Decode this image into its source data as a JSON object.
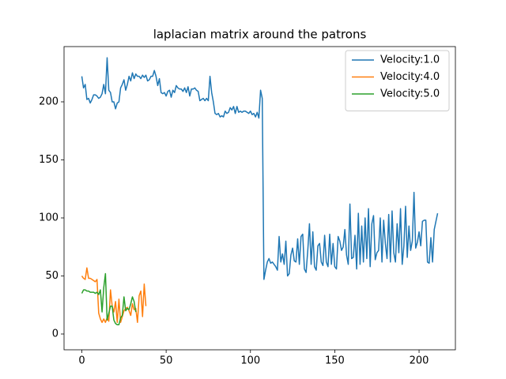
{
  "chart_data": {
    "type": "line",
    "title": "laplacian matrix around the patrons",
    "xlim": [
      -10.55,
      221.55
    ],
    "xticks": [
      0,
      50,
      100,
      150,
      200
    ],
    "ylim": [
      -13.6,
      247.6
    ],
    "yticks": [
      0,
      50,
      100,
      150,
      200
    ],
    "legend": "upper right",
    "series": [
      {
        "name": "Velocity:1.0",
        "color": "#1f77b4",
        "values": [
          222,
          212,
          215,
          202,
          203,
          199,
          202,
          206,
          206,
          205,
          203,
          204,
          207,
          215,
          207,
          238,
          210,
          208,
          200,
          200,
          194,
          199,
          200,
          212,
          215,
          219,
          210,
          215,
          222,
          218,
          225,
          220,
          224,
          222,
          222,
          220,
          223,
          221,
          223,
          218,
          219,
          222,
          222,
          227,
          222,
          214,
          220,
          208,
          207,
          208,
          205,
          209,
          210,
          204,
          210,
          208,
          214,
          212,
          211,
          211,
          209,
          212,
          208,
          213,
          205,
          211,
          211,
          212,
          210,
          209,
          201,
          202,
          203,
          201,
          203,
          201,
          222,
          208,
          200,
          190,
          189,
          190,
          187,
          188,
          187,
          192,
          190,
          191,
          195,
          193,
          196,
          190,
          196,
          191,
          192,
          191,
          192,
          192,
          191,
          190,
          192,
          189,
          190,
          187,
          191,
          186,
          210,
          203,
          47,
          55,
          62,
          65,
          61,
          62,
          60,
          58,
          55,
          84,
          62,
          69,
          60,
          80,
          50,
          52,
          68,
          74,
          63,
          62,
          82,
          60,
          84,
          86,
          56,
          53,
          72,
          95,
          60,
          88,
          58,
          55,
          76,
          78,
          62,
          59,
          85,
          62,
          58,
          86,
          60,
          78,
          58,
          56,
          84,
          80,
          72,
          75,
          90,
          68,
          60,
          112,
          65,
          66,
          85,
          56,
          104,
          60,
          93,
          62,
          100,
          65,
          108,
          58,
          95,
          102,
          64,
          70,
          72,
          100,
          62,
          98,
          78,
          65,
          103,
          62,
          106,
          70,
          62,
          95,
          70,
          108,
          60,
          76,
          110,
          66,
          93,
          72,
          80,
          122,
          74,
          79,
          88,
          76,
          97,
          98,
          98,
          62,
          61,
          83,
          62,
          90,
          97,
          104
        ]
      },
      {
        "name": "Velocity:4.0",
        "color": "#ff7f0e",
        "values": [
          50,
          48,
          47,
          57,
          48,
          48,
          47,
          46,
          45,
          47,
          18,
          13,
          10,
          13,
          10,
          14,
          11,
          38,
          24,
          19,
          28,
          10,
          30,
          10,
          15,
          20,
          22,
          23,
          20,
          16,
          26,
          21,
          22,
          10,
          33,
          37,
          15,
          43,
          24
        ]
      },
      {
        "name": "Velocity:5.0",
        "color": "#2ca02c",
        "values": [
          35,
          38,
          38,
          37,
          37,
          36,
          36,
          36,
          35,
          36,
          34,
          38,
          19,
          40,
          52,
          12,
          18,
          24,
          24,
          12,
          9,
          8,
          8,
          14,
          16,
          32,
          20,
          22,
          21,
          26,
          32,
          28,
          19
        ]
      }
    ]
  }
}
